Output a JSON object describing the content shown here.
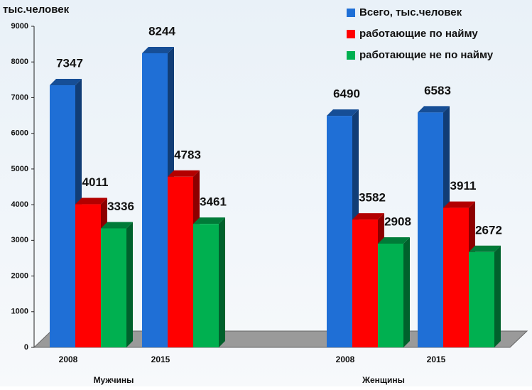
{
  "chart_data": {
    "type": "bar3d",
    "y_label": "тыс.человек",
    "categories": [
      "2008",
      "2015",
      "2008",
      "2015"
    ],
    "groups": [
      "Мужчины",
      "Женщины"
    ],
    "series": [
      {
        "name": "Всего, тыс.человек",
        "color": "#1f6fd6",
        "values": [
          7347,
          8244,
          6490,
          6583
        ]
      },
      {
        "name": "работающие по найму",
        "color": "#ff0000",
        "values": [
          4011,
          4783,
          3582,
          3911
        ]
      },
      {
        "name": "работающие не по найму",
        "color": "#00b050",
        "values": [
          3336,
          3461,
          2908,
          2672
        ]
      }
    ],
    "ylim": [
      0,
      9000
    ],
    "yticks": [
      0,
      1000,
      2000,
      3000,
      4000,
      5000,
      6000,
      7000,
      8000,
      9000
    ]
  }
}
